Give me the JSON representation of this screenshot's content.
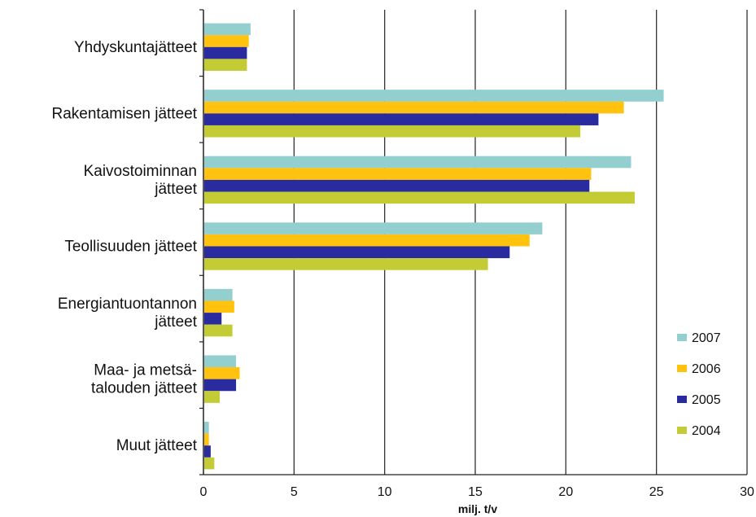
{
  "chart_data": {
    "type": "bar",
    "orientation": "horizontal",
    "categories": [
      [
        "Yhdyskuntajätteet"
      ],
      [
        "Rakentamisen jätteet"
      ],
      [
        "Kaivostoiminnan",
        "jätteet"
      ],
      [
        "Teollisuuden jätteet"
      ],
      [
        "Energiantuontannon",
        "jätteet"
      ],
      [
        "Maa- ja metsä-",
        "talouden jätteet"
      ],
      [
        "Muut jätteet"
      ]
    ],
    "series": [
      {
        "name": "2007",
        "color": "#93cfcf",
        "values": [
          2.6,
          25.4,
          23.6,
          18.7,
          1.6,
          1.8,
          0.3
        ]
      },
      {
        "name": "2006",
        "color": "#ffc20e",
        "values": [
          2.5,
          23.2,
          21.4,
          18.0,
          1.7,
          2.0,
          0.3
        ]
      },
      {
        "name": "2005",
        "color": "#2b2ba0",
        "values": [
          2.4,
          21.8,
          21.3,
          16.9,
          1.0,
          1.8,
          0.4
        ]
      },
      {
        "name": "2004",
        "color": "#c3cc34",
        "values": [
          2.4,
          20.8,
          23.8,
          15.7,
          1.6,
          0.9,
          0.6
        ]
      }
    ],
    "xlabel": "milj. t/v",
    "xlim": [
      0,
      30
    ],
    "xticks": [
      "0",
      "5",
      "10",
      "15",
      "20",
      "25",
      "30"
    ],
    "grid": "vertical",
    "legend_position": "bottom-right",
    "legend_order": [
      "2007",
      "2006",
      "2005",
      "2004"
    ]
  }
}
